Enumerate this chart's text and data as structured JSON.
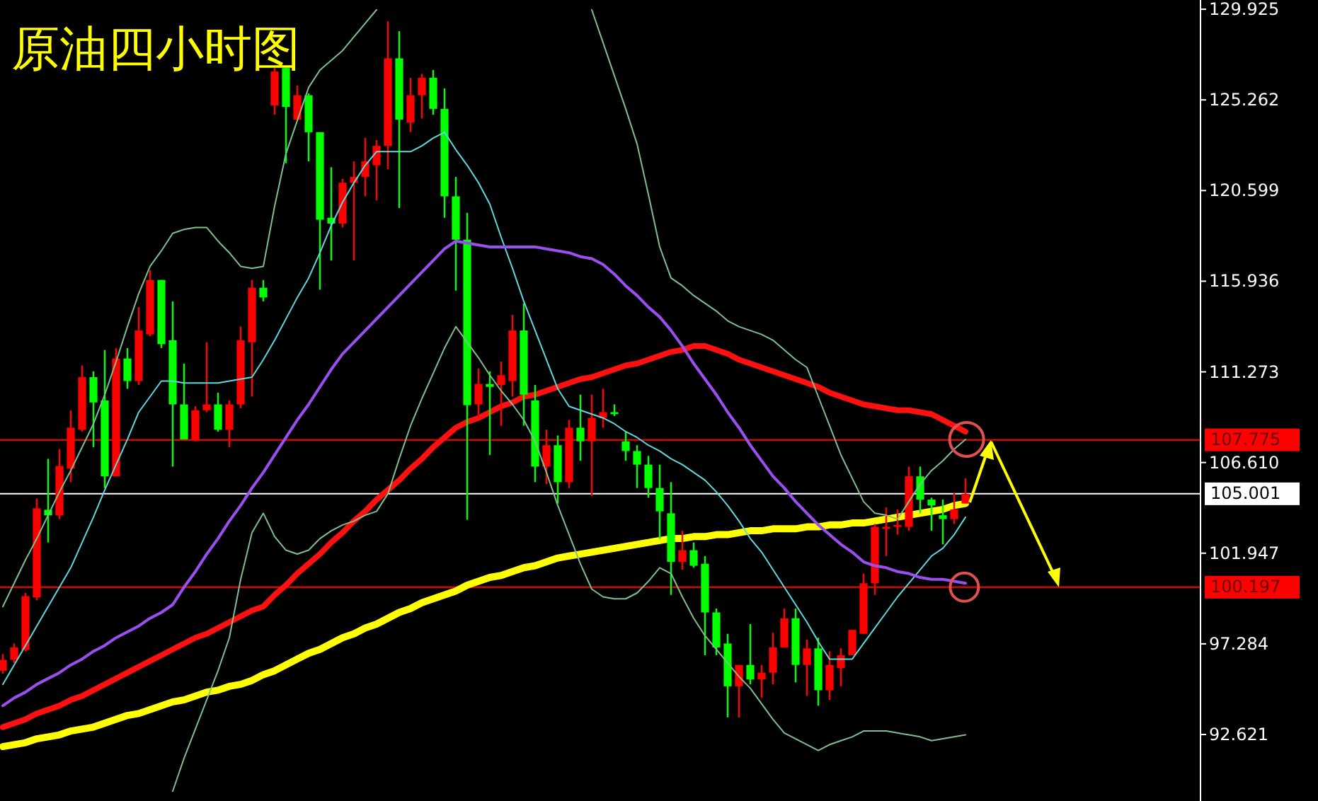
{
  "chart_data": {
    "type": "candlestick",
    "title": "原油四小时图",
    "tick_labels": "y",
    "ylim": [
      89.2,
      130.4
    ],
    "yticks": [
      129.925,
      125.262,
      120.599,
      115.936,
      111.273,
      {
        "value": 106.61,
        "label": "106.610"
      },
      101.947,
      97.284,
      92.621
    ],
    "categories": [
      null,
      null,
      null,
      null,
      null,
      null,
      null,
      null,
      null,
      null,
      null,
      null,
      null,
      null,
      null,
      null,
      null,
      null,
      null,
      null,
      null,
      null,
      null,
      null,
      null,
      null,
      null,
      null,
      null,
      null,
      null,
      null,
      null,
      null,
      null,
      null,
      null,
      null,
      null,
      null,
      null,
      null,
      null,
      null,
      null,
      null,
      null,
      null,
      null,
      null,
      null,
      null,
      null,
      null,
      null,
      null,
      null,
      null,
      null,
      null,
      null,
      null,
      null,
      null,
      null,
      null,
      null,
      null,
      null,
      null,
      null,
      null,
      null,
      null,
      null,
      null,
      null,
      null,
      null,
      null,
      null,
      null,
      null,
      null,
      null,
      null
    ],
    "ohlc": [
      [
        95.9,
        96.76,
        95.75,
        96.46
      ],
      [
        96.46,
        97.3,
        96.3,
        97.1
      ],
      [
        96.97,
        99.9,
        96.9,
        99.74
      ],
      [
        99.67,
        104.76,
        99.52,
        104.25
      ],
      [
        104.18,
        106.8,
        102.5,
        103.89
      ],
      [
        103.89,
        107.3,
        103.7,
        106.43
      ],
      [
        106.3,
        109.3,
        105.6,
        108.4
      ],
      [
        108.3,
        111.6,
        108.2,
        111.0
      ],
      [
        111.0,
        111.3,
        107.4,
        109.7
      ],
      [
        109.8,
        112.4,
        105.3,
        105.9
      ],
      [
        105.9,
        112.5,
        105.9,
        111.96
      ],
      [
        111.96,
        112.5,
        110.4,
        110.8
      ],
      [
        110.8,
        114.6,
        110.6,
        113.4
      ],
      [
        113.2,
        116.5,
        113.1,
        116.0
      ],
      [
        116.0,
        116.0,
        112.5,
        112.7
      ],
      [
        112.9,
        114.9,
        106.4,
        109.6
      ],
      [
        109.6,
        111.7,
        107.8,
        107.8
      ],
      [
        107.8,
        109.5,
        107.7,
        109.3
      ],
      [
        109.3,
        112.8,
        109.2,
        109.6
      ],
      [
        109.6,
        110.2,
        108.2,
        108.3
      ],
      [
        108.3,
        109.8,
        107.4,
        109.6
      ],
      [
        109.6,
        113.6,
        109.4,
        112.9
      ],
      [
        112.8,
        116.0,
        110.0,
        115.6
      ],
      [
        115.6,
        116.0,
        114.9,
        115.1
      ],
      [
        124.98,
        126.9,
        124.5,
        126.72
      ],
      [
        126.9,
        126.9,
        122.0,
        124.9
      ],
      [
        124.25,
        126.0,
        124.2,
        125.5
      ],
      [
        125.5,
        125.6,
        122.1,
        123.6
      ],
      [
        123.6,
        123.6,
        115.5,
        119.1
      ],
      [
        119.2,
        121.8,
        117.0,
        118.9
      ],
      [
        118.9,
        121.2,
        118.7,
        121.0
      ],
      [
        121.0,
        122.1,
        117.0,
        121.3
      ],
      [
        121.3,
        123.3,
        120.3,
        122.1
      ],
      [
        121.9,
        123.2,
        120.1,
        122.9
      ],
      [
        122.9,
        129.3,
        121.7,
        127.4
      ],
      [
        127.4,
        128.8,
        119.7,
        124.25
      ],
      [
        124.1,
        126.4,
        123.6,
        125.5
      ],
      [
        125.5,
        126.6,
        124.3,
        126.4
      ],
      [
        126.4,
        126.8,
        124.5,
        124.8
      ],
      [
        124.8,
        125.85,
        119.2,
        120.3
      ],
      [
        120.3,
        121.3,
        115.45,
        118.07
      ],
      [
        118.07,
        119.45,
        103.67,
        109.56
      ],
      [
        109.6,
        111.45,
        108.9,
        110.65
      ],
      [
        110.65,
        111.3,
        107.0,
        110.5
      ],
      [
        110.6,
        111.8,
        108.5,
        111.1
      ],
      [
        110.8,
        114.2,
        110.0,
        113.4
      ],
      [
        113.4,
        114.8,
        108.5,
        110.1
      ],
      [
        109.8,
        110.6,
        105.6,
        106.4
      ],
      [
        106.4,
        108.3,
        105.5,
        107.5
      ],
      [
        107.5,
        108.0,
        104.5,
        105.6
      ],
      [
        105.6,
        108.8,
        105.3,
        108.4
      ],
      [
        108.4,
        110.1,
        106.7,
        107.7
      ],
      [
        107.7,
        110.1,
        104.9,
        108.9
      ],
      [
        108.9,
        110.4,
        108.4,
        109.2
      ],
      [
        109.2,
        109.6,
        109.0,
        109.1
      ],
      [
        107.7,
        108.2,
        106.7,
        107.2
      ],
      [
        107.2,
        107.5,
        105.3,
        106.5
      ],
      [
        106.5,
        106.95,
        104.8,
        105.3
      ],
      [
        105.3,
        106.5,
        102.7,
        104.1
      ],
      [
        104.0,
        105.6,
        99.8,
        101.5
      ],
      [
        101.5,
        103.1,
        101.1,
        102.1
      ],
      [
        102.1,
        102.5,
        101.2,
        101.3
      ],
      [
        101.4,
        101.8,
        96.7,
        98.9
      ],
      [
        98.9,
        99.1,
        96.7,
        97.1
      ],
      [
        97.3,
        97.8,
        93.5,
        95.1
      ],
      [
        95.1,
        96.2,
        93.5,
        96.2
      ],
      [
        96.2,
        98.3,
        95.2,
        95.45
      ],
      [
        95.45,
        96.2,
        94.5,
        95.8
      ],
      [
        95.8,
        97.85,
        95.2,
        97.1
      ],
      [
        97.1,
        99.1,
        97.1,
        98.6
      ],
      [
        98.6,
        99.1,
        95.3,
        96.2
      ],
      [
        96.2,
        97.5,
        94.6,
        97.05
      ],
      [
        97.05,
        97.6,
        94.1,
        94.9
      ],
      [
        94.9,
        96.9,
        94.4,
        96.2
      ],
      [
        96.03,
        97.05,
        95.1,
        96.7
      ],
      [
        96.7,
        98.0,
        96.7,
        98.0
      ],
      [
        97.8,
        100.9,
        97.8,
        100.4
      ],
      [
        100.4,
        103.45,
        99.8,
        103.3
      ],
      [
        103.2,
        104.3,
        101.8,
        103.3
      ],
      [
        103.3,
        104.2,
        102.9,
        103.4
      ],
      [
        103.3,
        106.4,
        103.1,
        105.9
      ],
      [
        105.9,
        106.4,
        104.0,
        104.7
      ],
      [
        104.7,
        104.8,
        103.1,
        104.4
      ],
      [
        103.9,
        104.7,
        102.4,
        103.7
      ],
      [
        103.7,
        105.05,
        103.45,
        104.2
      ],
      [
        104.5,
        105.8,
        104.5,
        105.0
      ]
    ],
    "series": [
      {
        "type": "line",
        "color": "#7fbf8f",
        "values": [
          99.2,
          100.4,
          101.6,
          102.7,
          103.9,
          105.1,
          106.2,
          107.4,
          108.6,
          110.1,
          111.8,
          113.6,
          115.3,
          116.7,
          117.5,
          118.4,
          118.6,
          118.7,
          118.7,
          118.0,
          117.4,
          116.7,
          116.6,
          116.7,
          119.8,
          122.5,
          124.2,
          125.9,
          126.8,
          127.3,
          127.8,
          128.5,
          129.2,
          129.9,
          null,
          null,
          null,
          null,
          null,
          null,
          null,
          null,
          null,
          null,
          null,
          null,
          null,
          null,
          null,
          null,
          null,
          null,
          129.9,
          128.2,
          126.5,
          124.8,
          123.0,
          120.4,
          117.7,
          116.1,
          115.7,
          115.2,
          114.8,
          114.4,
          113.9,
          113.6,
          113.4,
          113.2,
          112.9,
          112.4,
          111.9,
          111.5,
          110.0,
          108.5,
          107.0,
          105.8,
          104.6,
          104.0,
          103.9,
          103.7,
          104.6,
          105.5,
          106.2,
          106.7,
          107.3,
          107.8
        ]
      },
      {
        "type": "line",
        "color": "#7fbf8f",
        "values": [
          null,
          null,
          null,
          null,
          null,
          null,
          null,
          null,
          null,
          null,
          null,
          null,
          null,
          null,
          null,
          89.7,
          91.4,
          92.9,
          94.4,
          95.9,
          97.6,
          100.6,
          103.0,
          104.0,
          102.8,
          102.1,
          101.9,
          102.1,
          102.7,
          103.1,
          103.4,
          103.6,
          103.9,
          104.1,
          105.0,
          106.8,
          108.5,
          109.9,
          111.2,
          112.5,
          113.6,
          112.8,
          112.0,
          111.1,
          110.3,
          109.6,
          108.8,
          107.7,
          106.1,
          104.4,
          102.9,
          101.4,
          100.1,
          99.7,
          99.6,
          99.6,
          99.9,
          100.5,
          101.2,
          100.9,
          99.7,
          98.6,
          97.7,
          97.0,
          96.3,
          95.6,
          95.0,
          94.2,
          93.4,
          92.7,
          92.4,
          92.1,
          91.8,
          92.1,
          92.3,
          92.5,
          92.8,
          92.8,
          92.8,
          92.7,
          92.6,
          92.5,
          92.3,
          92.4,
          92.5,
          92.6
        ]
      },
      {
        "type": "line",
        "color": "#5fd8e0",
        "values": [
          95.2,
          96.2,
          97.2,
          98.2,
          99.2,
          100.2,
          101.2,
          102.5,
          103.8,
          105.2,
          106.5,
          107.8,
          109.2,
          110.0,
          110.8,
          110.8,
          110.7,
          110.7,
          110.7,
          110.7,
          110.8,
          110.9,
          111.0,
          111.9,
          112.9,
          114.0,
          115.1,
          116.1,
          117.4,
          118.8,
          120.0,
          121.0,
          121.9,
          122.6,
          122.6,
          122.6,
          122.6,
          122.9,
          123.3,
          123.6,
          122.7,
          121.9,
          121.0,
          119.9,
          118.2,
          116.6,
          114.9,
          113.4,
          111.9,
          110.4,
          109.5,
          109.3,
          109.1,
          108.9,
          108.6,
          108.2,
          107.9,
          107.5,
          107.2,
          106.8,
          106.5,
          106.1,
          105.7,
          105.1,
          104.4,
          103.6,
          102.7,
          102.0,
          101.1,
          100.2,
          99.3,
          98.4,
          97.4,
          96.5,
          96.5,
          96.5,
          97.3,
          98.1,
          98.9,
          99.7,
          100.4,
          101.1,
          101.8,
          102.2,
          102.9,
          103.8
        ]
      },
      {
        "type": "line",
        "color": "#9b4ff0",
        "values": [
          94.1,
          94.5,
          94.8,
          95.2,
          95.5,
          95.8,
          96.2,
          96.5,
          96.9,
          97.2,
          97.6,
          97.9,
          98.2,
          98.6,
          98.9,
          99.3,
          100.2,
          101.0,
          101.9,
          102.7,
          103.6,
          104.4,
          105.3,
          106.1,
          107.0,
          107.9,
          108.8,
          109.6,
          110.5,
          111.4,
          112.2,
          112.8,
          113.4,
          114.0,
          114.6,
          115.2,
          115.8,
          116.4,
          117.0,
          117.6,
          118.0,
          117.9,
          117.8,
          117.7,
          117.7,
          117.7,
          117.7,
          117.7,
          117.6,
          117.5,
          117.4,
          117.2,
          117.1,
          116.8,
          116.3,
          115.7,
          115.2,
          114.6,
          114.1,
          113.4,
          112.6,
          111.7,
          110.9,
          110.1,
          109.2,
          108.4,
          107.5,
          106.7,
          105.9,
          105.3,
          104.6,
          104.0,
          103.4,
          102.9,
          102.4,
          102.0,
          101.5,
          101.3,
          101.2,
          101.0,
          100.9,
          100.7,
          100.6,
          100.6,
          100.5,
          100.4
        ]
      },
      {
        "type": "line",
        "color": "#ff1010",
        "values": [
          93.0,
          93.2,
          93.4,
          93.7,
          93.9,
          94.1,
          94.4,
          94.6,
          94.9,
          95.2,
          95.5,
          95.8,
          96.1,
          96.4,
          96.7,
          97.0,
          97.3,
          97.6,
          97.8,
          98.1,
          98.4,
          98.7,
          99.0,
          99.2,
          99.8,
          100.3,
          100.9,
          101.4,
          101.9,
          102.5,
          103.0,
          103.6,
          104.1,
          104.7,
          105.2,
          105.7,
          106.3,
          106.8,
          107.4,
          107.9,
          108.4,
          108.7,
          108.9,
          109.2,
          109.5,
          109.7,
          110.0,
          110.1,
          110.3,
          110.5,
          110.7,
          110.9,
          111.0,
          111.2,
          111.4,
          111.6,
          111.7,
          111.9,
          112.1,
          112.3,
          112.4,
          112.6,
          112.6,
          112.4,
          112.2,
          111.9,
          111.7,
          111.5,
          111.3,
          111.1,
          110.9,
          110.7,
          110.5,
          110.2,
          110.0,
          109.8,
          109.6,
          109.5,
          109.4,
          109.3,
          109.3,
          109.2,
          109.1,
          108.8,
          108.5,
          108.2
        ]
      },
      {
        "type": "line",
        "color": "#ffff00",
        "values": [
          92.0,
          92.1,
          92.2,
          92.4,
          92.5,
          92.6,
          92.8,
          92.9,
          93.0,
          93.2,
          93.4,
          93.6,
          93.7,
          93.9,
          94.1,
          94.3,
          94.4,
          94.6,
          94.8,
          94.9,
          95.1,
          95.2,
          95.4,
          95.7,
          95.9,
          96.2,
          96.5,
          96.8,
          97.0,
          97.3,
          97.6,
          97.8,
          98.1,
          98.3,
          98.6,
          98.9,
          99.1,
          99.4,
          99.6,
          99.8,
          100.0,
          100.3,
          100.5,
          100.7,
          100.8,
          101.0,
          101.2,
          101.3,
          101.5,
          101.7,
          101.8,
          101.9,
          102.0,
          102.1,
          102.2,
          102.3,
          102.4,
          102.5,
          102.6,
          102.7,
          102.7,
          102.8,
          102.8,
          102.9,
          102.9,
          103.0,
          103.1,
          103.1,
          103.2,
          103.2,
          103.2,
          103.3,
          103.3,
          103.4,
          103.4,
          103.5,
          103.5,
          103.6,
          103.7,
          103.8,
          103.9,
          104.0,
          104.1,
          104.2,
          104.4,
          104.5
        ]
      }
    ],
    "ref_lines": [
      {
        "axis": "y",
        "value": 107.775,
        "label": "107.775",
        "color": "#ff0000"
      },
      {
        "axis": "y",
        "value": 105.001,
        "label": "105.001",
        "color": "#ffffff"
      },
      {
        "axis": "y",
        "value": 100.197,
        "label": "100.197",
        "color": "#ff0000"
      }
    ]
  }
}
